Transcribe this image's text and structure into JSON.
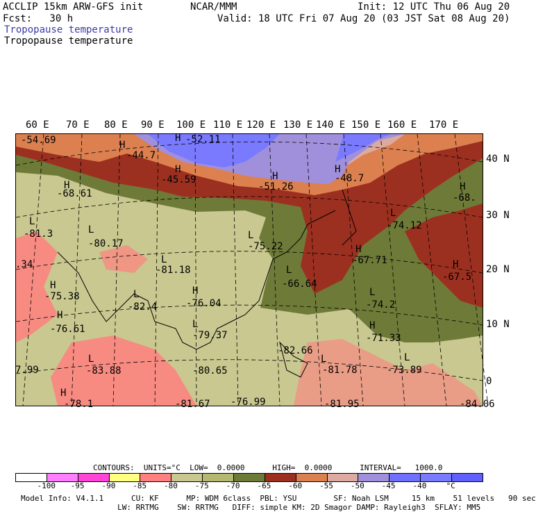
{
  "header": {
    "line1_left": "ACCLIP 15km ARW-GFS init",
    "line1_center": "NCAR/MMM",
    "line1_right": "Init: 12 UTC Thu 06 Aug 20",
    "line2_left": "Fcst:   30 h",
    "line2_right": "Valid: 18 UTC Fri 07 Aug 20 (03 JST Sat 08 Aug 20)",
    "field_blue": "Tropopause temperature",
    "field_black": "Tropopause temperature"
  },
  "lon_labels": [
    "60 E",
    "70 E",
    "80 E",
    "90 E",
    "100 E",
    "110 E",
    "120 E",
    "130 E",
    "140 E",
    "150 E",
    "160 E",
    "170 E"
  ],
  "lat_labels": [
    "40 N",
    "30 N",
    "20 N",
    "10 N",
    "0"
  ],
  "map_labels": [
    {
      "t": "-54.69"
    },
    {
      "t": "H"
    },
    {
      "t": "-44.7"
    },
    {
      "t": "H"
    },
    {
      "t": "-52.11"
    },
    {
      "t": "H"
    },
    {
      "t": "-45.59"
    },
    {
      "t": "H"
    },
    {
      "t": "-51.26"
    },
    {
      "t": "H"
    },
    {
      "t": "-48.7"
    },
    {
      "t": "H"
    },
    {
      "t": "-68.61"
    },
    {
      "t": "H"
    },
    {
      "t": "-68."
    },
    {
      "t": "L"
    },
    {
      "t": "-81.3"
    },
    {
      "t": "L"
    },
    {
      "t": "-80.17"
    },
    {
      "t": "L"
    },
    {
      "t": "-74.12"
    },
    {
      "t": "L"
    },
    {
      "t": "-75.22"
    },
    {
      "t": "L"
    },
    {
      "t": "-81.18"
    },
    {
      "t": "H"
    },
    {
      "t": "-67.71"
    },
    {
      "t": "H"
    },
    {
      "t": "-67.5"
    },
    {
      "t": ".34"
    },
    {
      "t": "H"
    },
    {
      "t": "-75.38"
    },
    {
      "t": "L"
    },
    {
      "t": "-82.4"
    },
    {
      "t": "H"
    },
    {
      "t": "-76.04"
    },
    {
      "t": "L"
    },
    {
      "t": "-66.64"
    },
    {
      "t": "L"
    },
    {
      "t": "-74.2"
    },
    {
      "t": "H"
    },
    {
      "t": "-76.61"
    },
    {
      "t": "L"
    },
    {
      "t": "-79.37"
    },
    {
      "t": "H"
    },
    {
      "t": "-71.33"
    },
    {
      "t": "7.99"
    },
    {
      "t": "L"
    },
    {
      "t": "-83.88"
    },
    {
      "t": "-80.65"
    },
    {
      "t": "L"
    },
    {
      "t": "-81.78"
    },
    {
      "t": "L"
    },
    {
      "t": "-73.89"
    },
    {
      "t": "H"
    },
    {
      "t": "-78.1"
    },
    {
      "t": "-81.67"
    },
    {
      "t": "-76.99"
    },
    {
      "t": "-81.95"
    },
    {
      "t": "-84.06"
    },
    {
      "t": "-82.66"
    }
  ],
  "contours_line": "CONTOURS:  UNITS=°C  LOW=  0.0000      HIGH=  0.0000      INTERVAL=   1000.0",
  "colorbar": {
    "colors": [
      "#ffffff",
      "#ff7dff",
      "#ff44d8",
      "#ffff80",
      "#ff8080",
      "#c8c890",
      "#b4b870",
      "#6e7a38",
      "#9c3020",
      "#dc8050",
      "#dcaaa0",
      "#a090dc",
      "#7070ff",
      "#7a7aff",
      "#6060ff"
    ],
    "labels": [
      "-100",
      "-95",
      "-90",
      "-85",
      "-80",
      "-75",
      "-70",
      "-65",
      "-60",
      "-55",
      "-50",
      "-45",
      "-40",
      "°C"
    ]
  },
  "footer": {
    "line1": "Model Info: V4.1.1      CU: KF      MP: WDM 6class  PBL: YSU        SF: Noah LSM     15 km    51 levels   90 sec",
    "line2": "                     LW: RRTMG    SW: RRTMG   DIFF: simple KM: 2D Smagor DAMP: Rayleigh3  SFLAY: MM5"
  }
}
